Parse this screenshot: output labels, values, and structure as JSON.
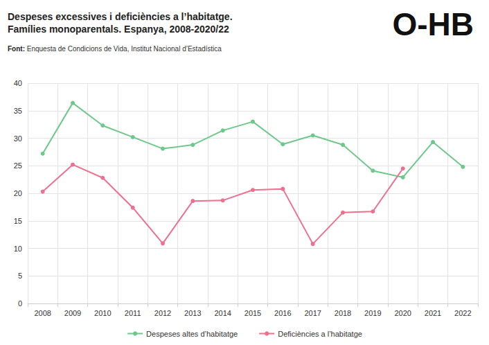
{
  "chart_data": {
    "type": "line",
    "title": "Despeses excessives i deficiències a l’habitatge. Famílies monoparentals. Espanya, 2008-2020/22",
    "source_label": "Font:",
    "source": "Enquesta de Condicions de Vida, Institut Nacional d’Estadística",
    "logo": "O-HB",
    "categories": [
      "2008",
      "2009",
      "2010",
      "2011",
      "2012",
      "2013",
      "2014",
      "2015",
      "2016",
      "2017",
      "2018",
      "2019",
      "2020",
      "2021",
      "2022"
    ],
    "series": [
      {
        "name": "Despeses altes d’habitatge",
        "color": "#6cc98a",
        "marker": "circle",
        "values": [
          27.2,
          36.4,
          32.3,
          30.2,
          28.1,
          28.8,
          31.4,
          33.0,
          28.9,
          30.5,
          28.8,
          24.1,
          22.9,
          29.3,
          24.8
        ]
      },
      {
        "name": "Deficiències a l’habitatge",
        "color": "#ee6f8e",
        "marker": "circle",
        "values": [
          20.3,
          25.2,
          22.8,
          17.4,
          10.9,
          18.6,
          18.7,
          20.6,
          20.8,
          10.8,
          16.5,
          16.7,
          24.5,
          null,
          null
        ]
      }
    ],
    "ylim": [
      0,
      40
    ],
    "yticks": [
      0,
      5,
      10,
      15,
      20,
      25,
      30,
      35,
      40
    ],
    "grid": true,
    "legend": "bottom"
  }
}
